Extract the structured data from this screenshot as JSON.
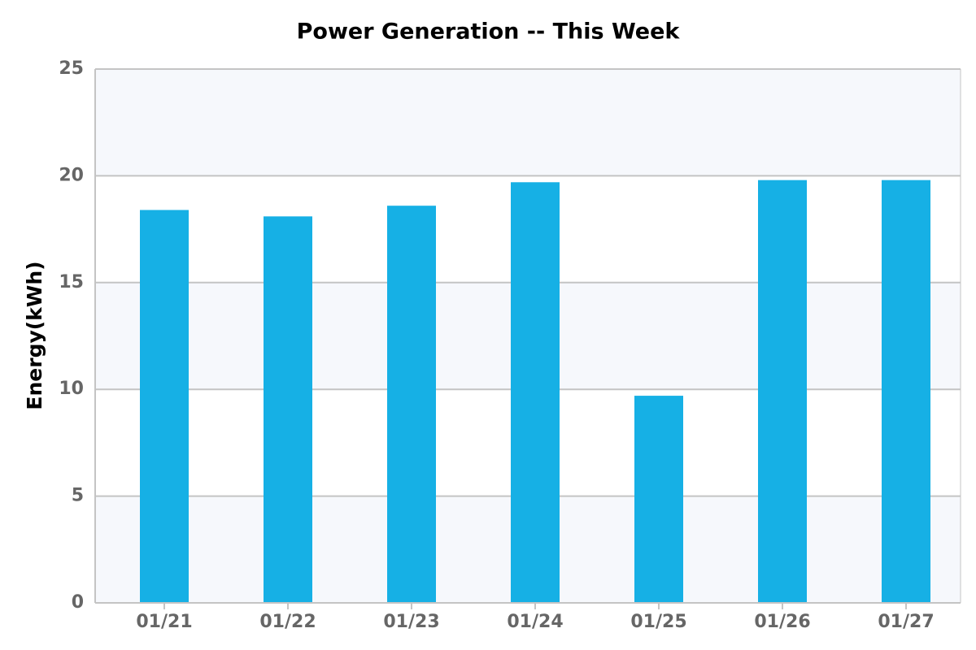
{
  "chart_data": {
    "type": "bar",
    "title": "Power Generation -- This Week",
    "y_label": "Energy(kWh)",
    "categories": [
      "01/21",
      "01/22",
      "01/23",
      "01/24",
      "01/25",
      "01/26",
      "01/27"
    ],
    "values": [
      18.4,
      18.1,
      18.6,
      19.7,
      9.7,
      19.8,
      19.8
    ],
    "color": "#16b0e5",
    "ylim": [
      0,
      25
    ],
    "yticks": [
      0,
      5,
      10,
      15,
      20,
      25
    ],
    "grid": true
  }
}
